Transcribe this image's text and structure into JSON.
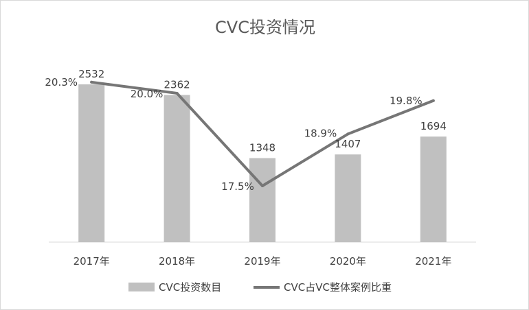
{
  "chart_data": {
    "type": "bar",
    "title": "CVC投资情况",
    "categories": [
      "2017年",
      "2018年",
      "2019年",
      "2020年",
      "2021年"
    ],
    "series": [
      {
        "name": "CVC投资数目",
        "type": "bar",
        "values": [
          2532,
          2362,
          1348,
          1407,
          1694
        ],
        "labels": [
          "2532",
          "2362",
          "1348",
          "1407",
          "1694"
        ],
        "color": "#c0c0c0"
      },
      {
        "name": "CVC占VC整体案例比重",
        "type": "line",
        "values": [
          20.3,
          20.0,
          17.5,
          18.9,
          19.8
        ],
        "labels": [
          "20.3%",
          "20.0%",
          "17.5%",
          "18.9%",
          "19.8%"
        ],
        "color": "#767676"
      }
    ],
    "legend_position": "bottom",
    "grid": false,
    "ylim_left": [
      0,
      2600
    ],
    "ylim_right": [
      10,
      21
    ]
  }
}
